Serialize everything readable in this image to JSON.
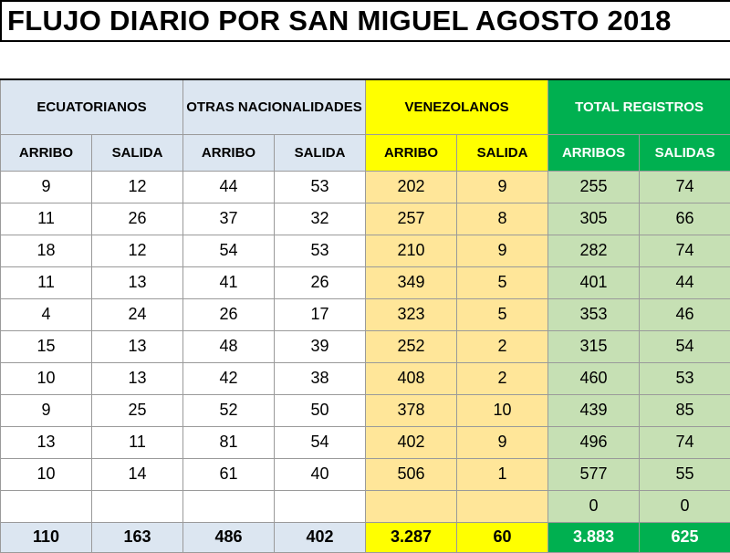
{
  "title": "FLUJO DIARIO POR SAN MIGUEL AGOSTO 2018",
  "groups": {
    "ecuatorianos": "ECUATORIANOS",
    "otras": "OTRAS NACIONALIDADES",
    "venezolanos": "VENEZOLANOS",
    "total": "TOTAL REGISTROS"
  },
  "subheaders": [
    "ARRIBO",
    "SALIDA",
    "ARRIBO",
    "SALIDA",
    "ARRIBO",
    "SALIDA",
    "ARRIBOS",
    "SALIDAS"
  ],
  "rows": [
    [
      "9",
      "12",
      "44",
      "53",
      "202",
      "9",
      "255",
      "74"
    ],
    [
      "11",
      "26",
      "37",
      "32",
      "257",
      "8",
      "305",
      "66"
    ],
    [
      "18",
      "12",
      "54",
      "53",
      "210",
      "9",
      "282",
      "74"
    ],
    [
      "11",
      "13",
      "41",
      "26",
      "349",
      "5",
      "401",
      "44"
    ],
    [
      "4",
      "24",
      "26",
      "17",
      "323",
      "5",
      "353",
      "46"
    ],
    [
      "15",
      "13",
      "48",
      "39",
      "252",
      "2",
      "315",
      "54"
    ],
    [
      "10",
      "13",
      "42",
      "38",
      "408",
      "2",
      "460",
      "53"
    ],
    [
      "9",
      "25",
      "52",
      "50",
      "378",
      "10",
      "439",
      "85"
    ],
    [
      "13",
      "11",
      "81",
      "54",
      "402",
      "9",
      "496",
      "74"
    ],
    [
      "10",
      "14",
      "61",
      "40",
      "506",
      "1",
      "577",
      "55"
    ],
    [
      "",
      "",
      "",
      "",
      "",
      "",
      "0",
      "0"
    ]
  ],
  "totals": [
    "110",
    "163",
    "486",
    "402",
    "3.287",
    "60",
    "3.883",
    "625"
  ],
  "colors": {
    "header_blue": "#dce6f1",
    "venezolanos_header": "#ffff00",
    "venezolanos_cells": "#ffe699",
    "total_header": "#00b050",
    "total_cells": "#c6e0b4"
  }
}
